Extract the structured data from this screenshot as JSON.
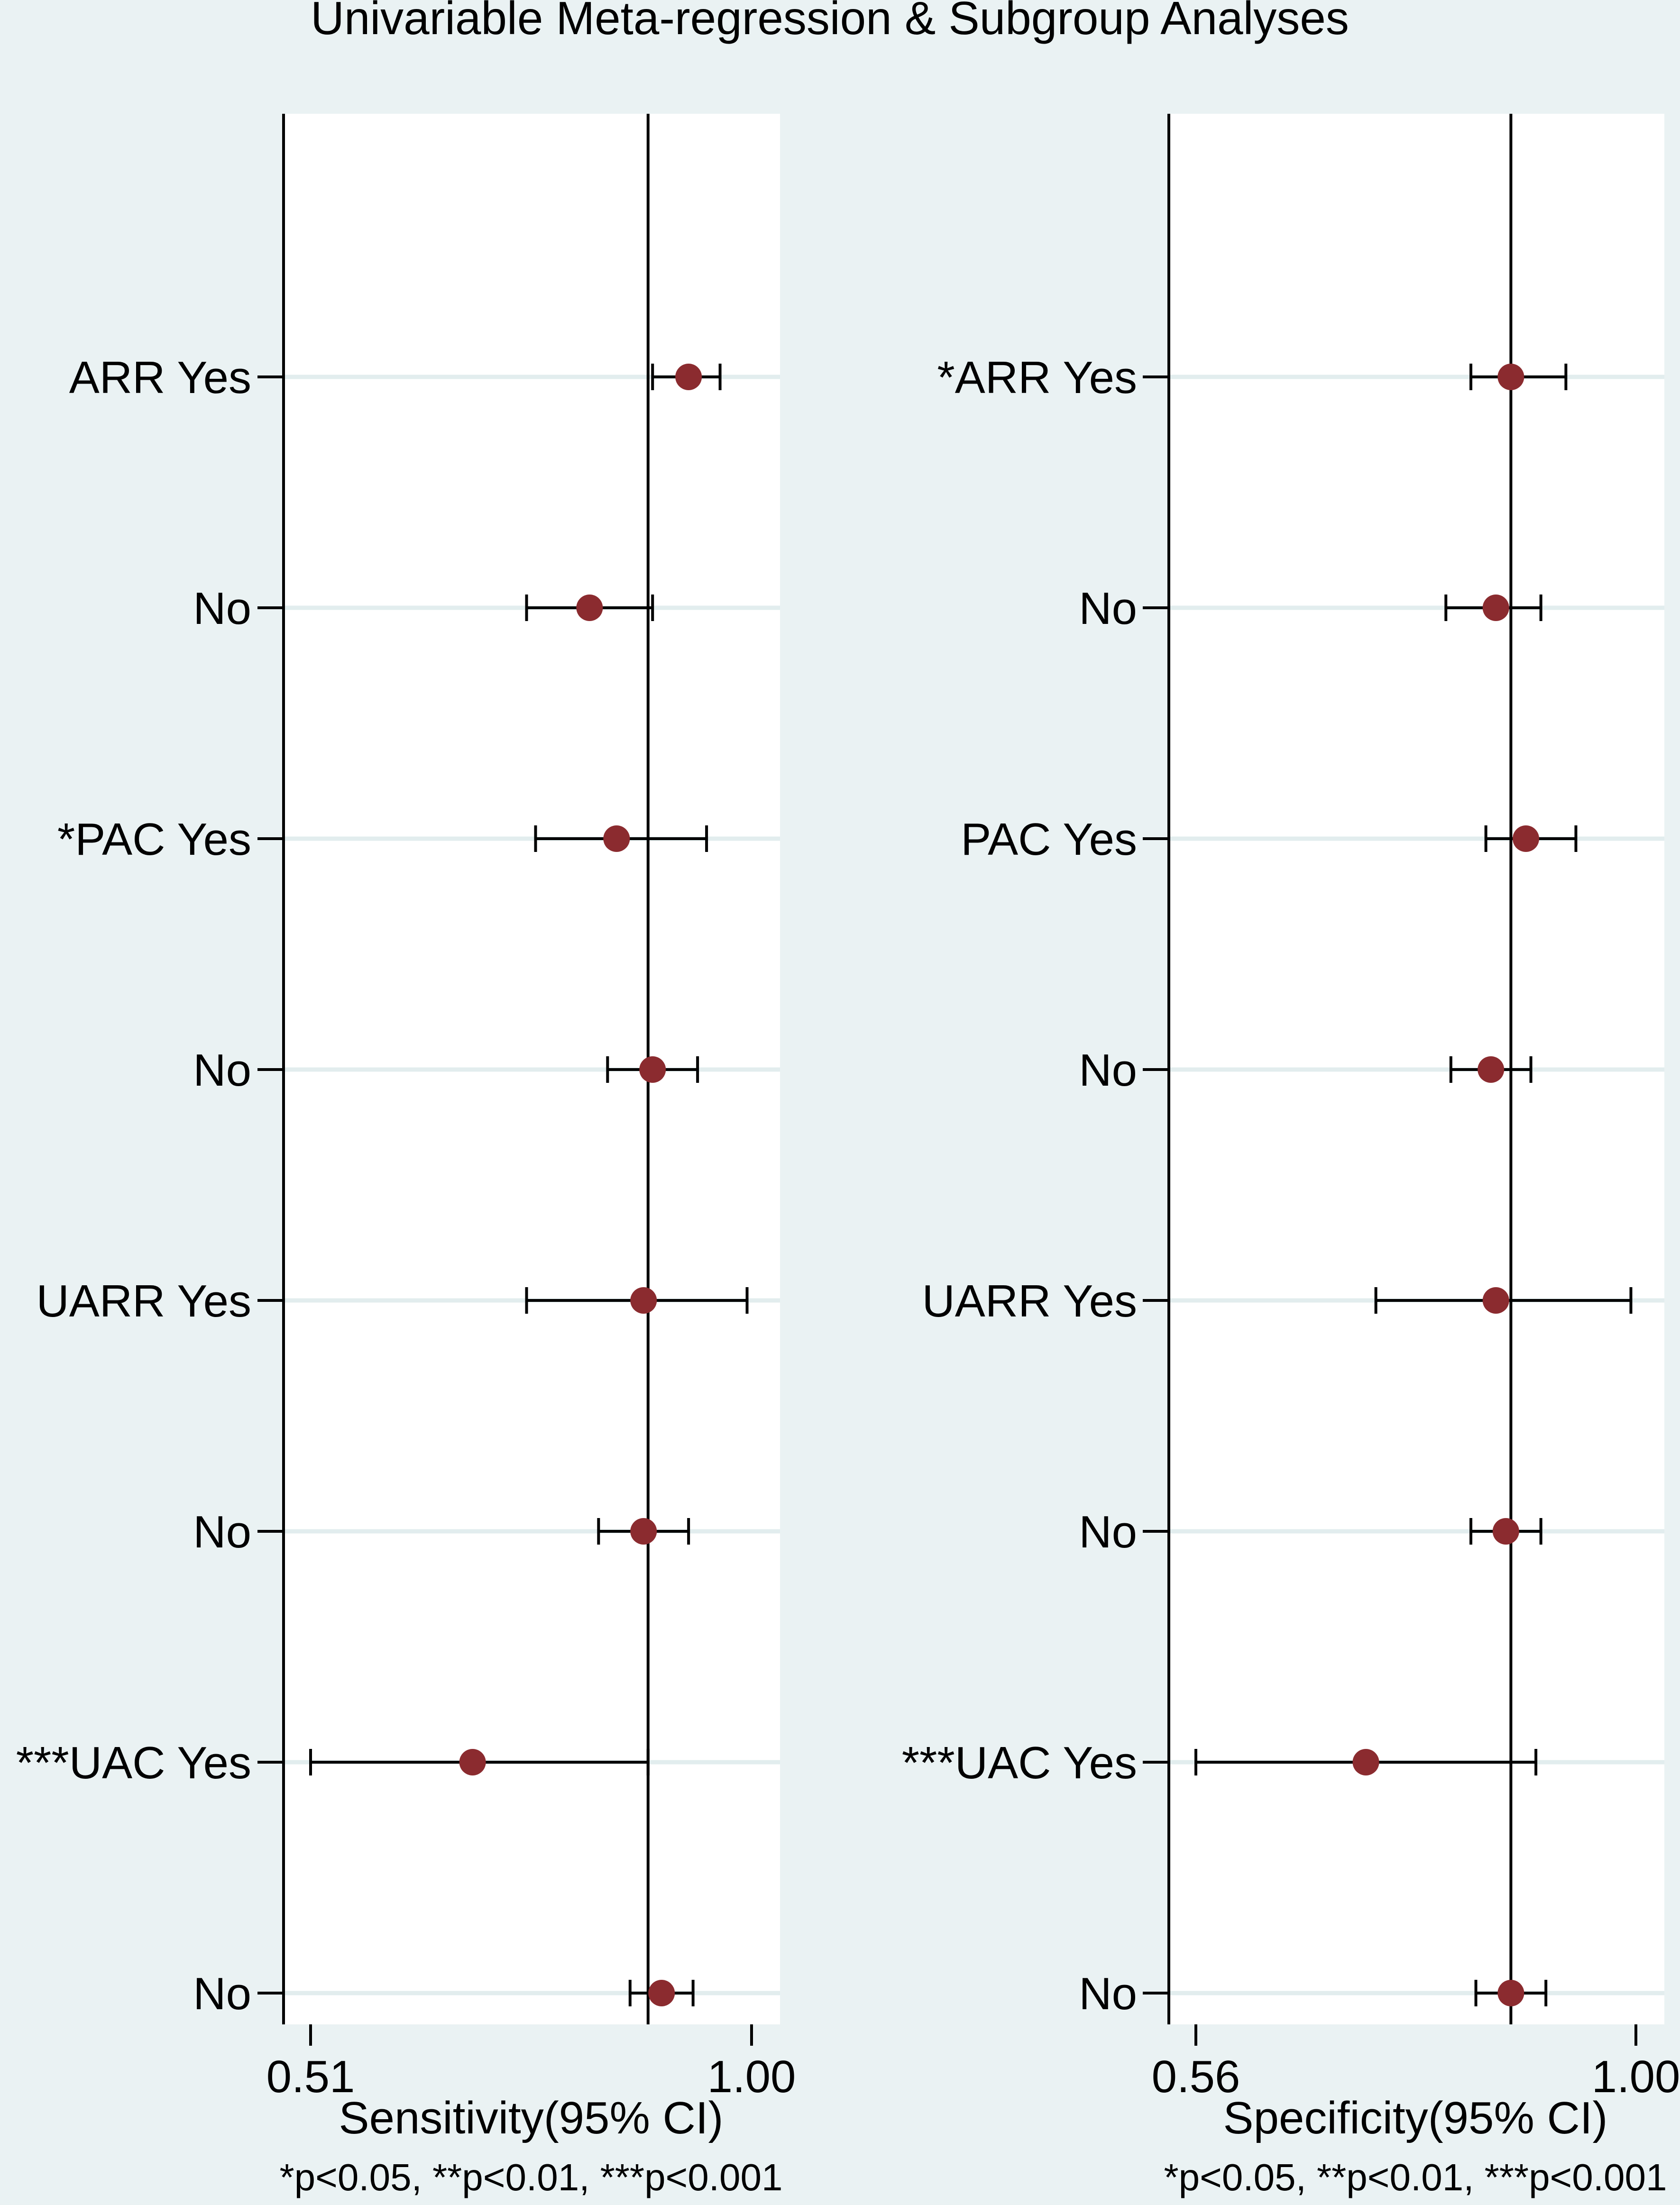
{
  "title": "Univariable Meta-regression & Subgroup Analyses",
  "colors": {
    "background": "#eaf2f3",
    "plot_background": "#ffffff",
    "marker": "#8b2b2f",
    "gridline": "#e2edee",
    "axis": "#000000"
  },
  "chart_data": [
    {
      "type": "forest",
      "xlabel": "Sensitivity(95% CI)",
      "note": "*p<0.05, **p<0.01, ***p<0.001",
      "xlim": [
        0.51,
        1.0
      ],
      "xticks": [
        "0.51",
        "1.00"
      ],
      "reference_value": 0.885,
      "grid": true,
      "rows": [
        {
          "label": "ARR Yes",
          "estimate": 0.93,
          "lower": 0.89,
          "upper": 0.965
        },
        {
          "label": "No",
          "estimate": 0.82,
          "lower": 0.75,
          "upper": 0.89
        },
        {
          "label": "*PAC Yes",
          "estimate": 0.85,
          "lower": 0.76,
          "upper": 0.95
        },
        {
          "label": "No",
          "estimate": 0.89,
          "lower": 0.84,
          "upper": 0.94
        },
        {
          "label": "UARR Yes",
          "estimate": 0.88,
          "lower": 0.75,
          "upper": 0.995
        },
        {
          "label": "No",
          "estimate": 0.88,
          "lower": 0.83,
          "upper": 0.93
        },
        {
          "label": "***UAC Yes",
          "estimate": 0.69,
          "lower": 0.51,
          "upper": 0.885
        },
        {
          "label": "No",
          "estimate": 0.9,
          "lower": 0.865,
          "upper": 0.935
        }
      ]
    },
    {
      "type": "forest",
      "xlabel": "Specificity(95% CI)",
      "note": "*p<0.05, **p<0.01, ***p<0.001",
      "xlim": [
        0.56,
        1.0
      ],
      "xticks": [
        "0.56",
        "1.00"
      ],
      "reference_value": 0.875,
      "grid": true,
      "rows": [
        {
          "label": "*ARR Yes",
          "estimate": 0.875,
          "lower": 0.835,
          "upper": 0.93
        },
        {
          "label": "No",
          "estimate": 0.86,
          "lower": 0.81,
          "upper": 0.905
        },
        {
          "label": "PAC Yes",
          "estimate": 0.89,
          "lower": 0.85,
          "upper": 0.94
        },
        {
          "label": "No",
          "estimate": 0.855,
          "lower": 0.815,
          "upper": 0.895
        },
        {
          "label": "UARR Yes",
          "estimate": 0.86,
          "lower": 0.74,
          "upper": 0.995
        },
        {
          "label": "No",
          "estimate": 0.87,
          "lower": 0.835,
          "upper": 0.905
        },
        {
          "label": "***UAC Yes",
          "estimate": 0.73,
          "lower": 0.56,
          "upper": 0.9
        },
        {
          "label": "No",
          "estimate": 0.875,
          "lower": 0.84,
          "upper": 0.91
        }
      ]
    }
  ]
}
